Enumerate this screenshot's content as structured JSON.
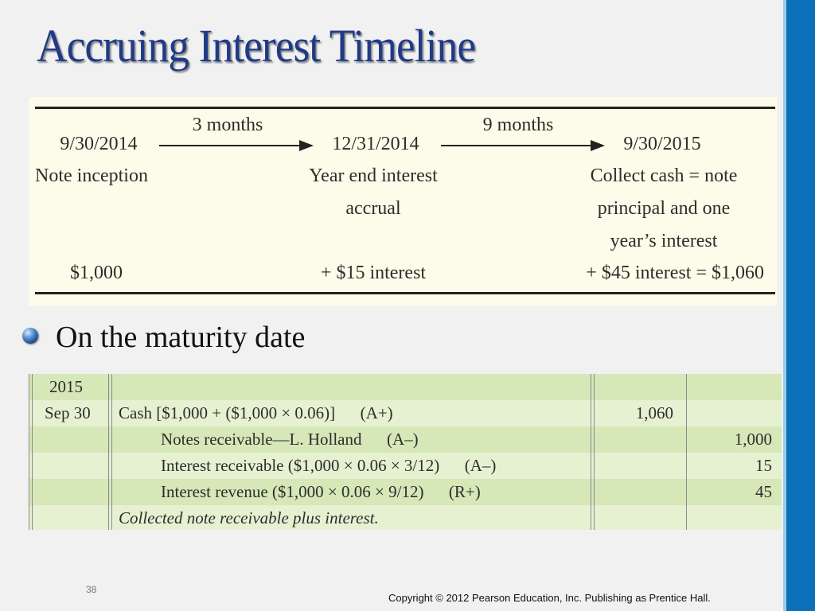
{
  "title": "Accruing Interest Timeline",
  "timeline": {
    "dates": [
      "9/30/2014",
      "12/31/2014",
      "9/30/2015"
    ],
    "intervals": [
      "3 months",
      "9 months"
    ],
    "descriptions": [
      [
        "Note inception"
      ],
      [
        "Year end interest",
        "accrual"
      ],
      [
        "Collect cash = note",
        "principal and one",
        "year’s interest"
      ]
    ],
    "amounts": [
      "$1,000",
      "+ $15 interest",
      "+ $45 interest = $1,060"
    ]
  },
  "bullet": "On the maturity date",
  "journal": {
    "rows": [
      {
        "date": "2015",
        "account": "",
        "debit": "",
        "credit": "",
        "indent": false,
        "italic": false
      },
      {
        "date": "Sep 30",
        "account": "Cash [$1,000 + ($1,000 × 0.06)]  (A+)",
        "debit": "1,060",
        "credit": "",
        "indent": false,
        "italic": false
      },
      {
        "date": "",
        "account": "Notes receivable—L. Holland  (A–)",
        "debit": "",
        "credit": "1,000",
        "indent": true,
        "italic": false
      },
      {
        "date": "",
        "account": "Interest receivable ($1,000 × 0.06 × 3/12)  (A–)",
        "debit": "",
        "credit": "15",
        "indent": true,
        "italic": false
      },
      {
        "date": "",
        "account": "Interest revenue ($1,000 × 0.06 × 9/12)  (R+)",
        "debit": "",
        "credit": "45",
        "indent": true,
        "italic": false
      },
      {
        "date": "",
        "account": "Collected note receivable plus interest.",
        "debit": "",
        "credit": "",
        "indent": false,
        "italic": true
      }
    ]
  },
  "page_number": "38",
  "copyright": "Copyright © 2012 Pearson Education, Inc. Publishing as Prentice Hall.",
  "colors": {
    "title": "#1f3a86",
    "side_bar": "#0b70b9",
    "timeline_bg": "#fdfbe9",
    "journal_row_dark": "#d6e7b8",
    "journal_row_light": "#e6f1d2"
  }
}
